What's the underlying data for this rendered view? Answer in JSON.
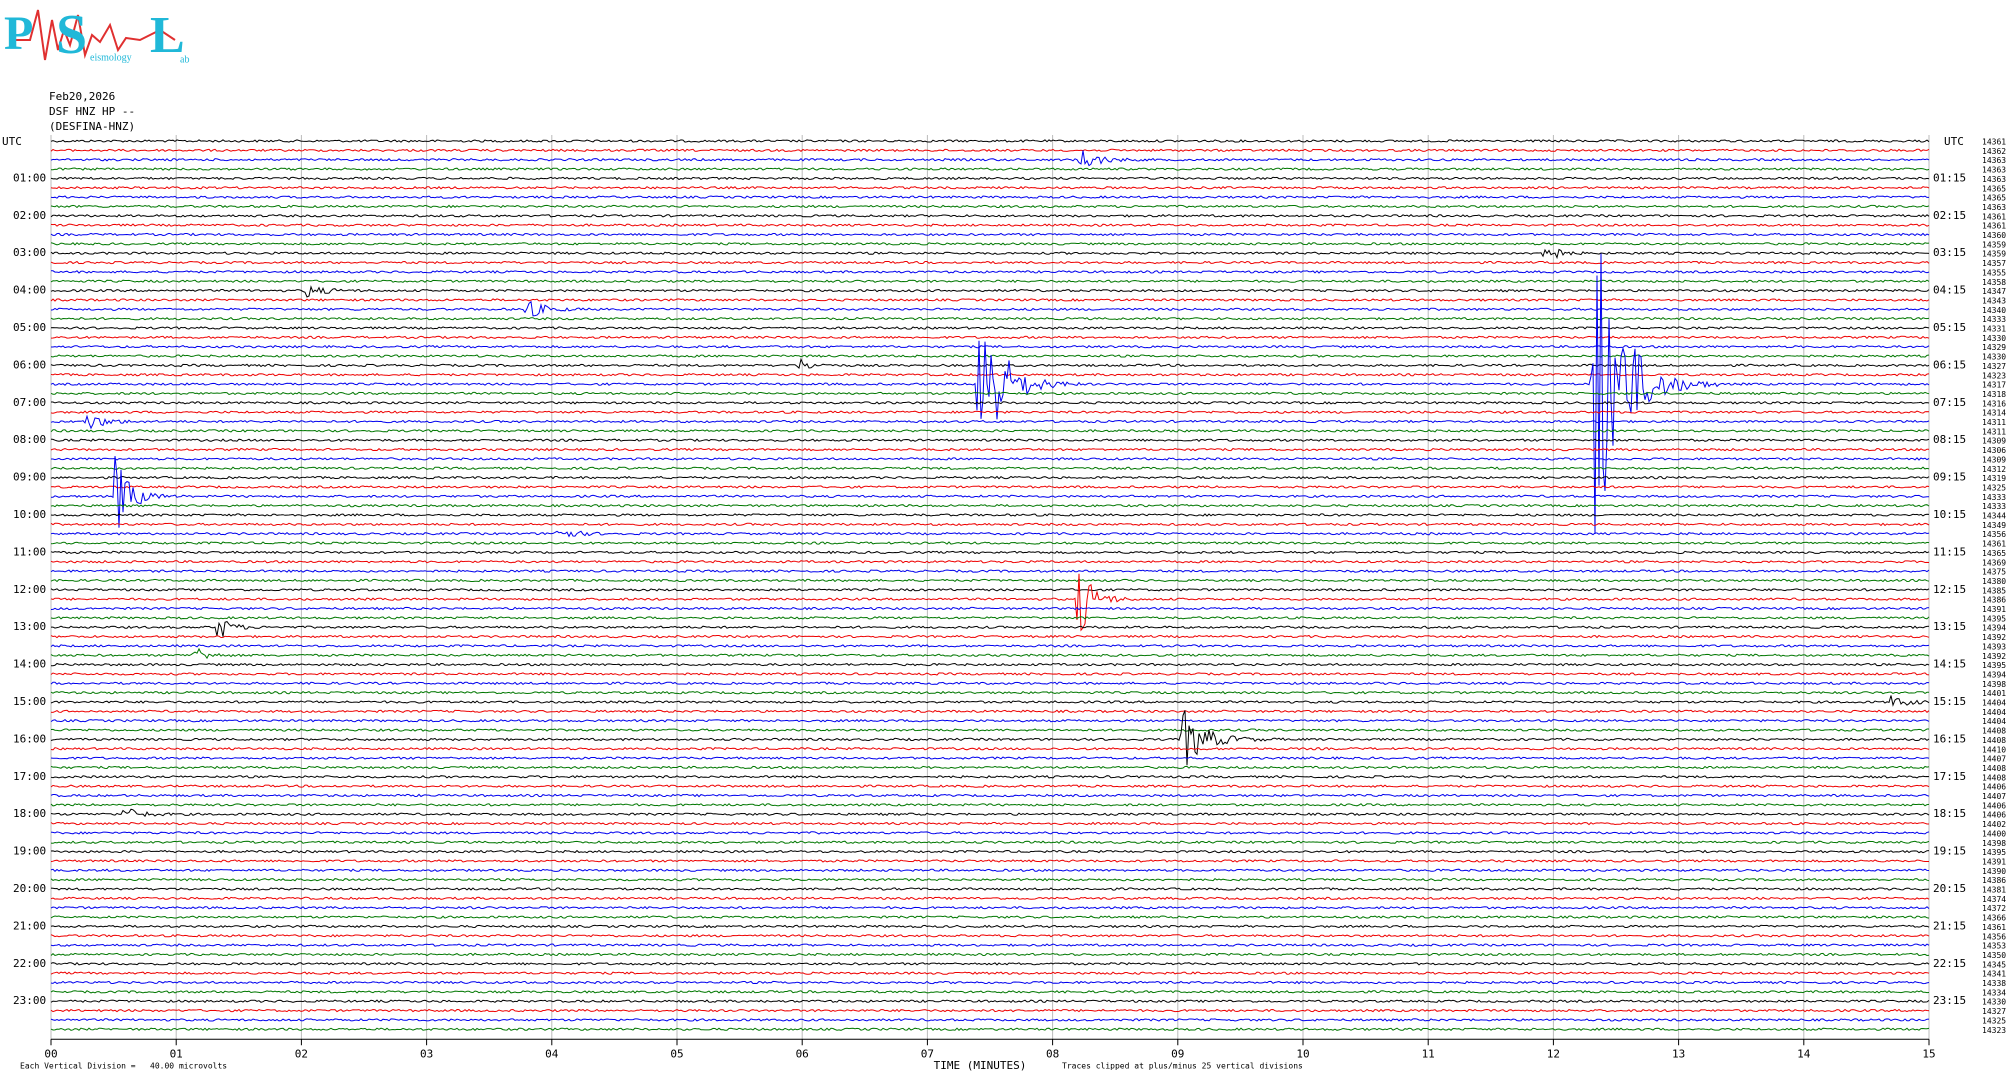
{
  "logo": {
    "letters": [
      "P",
      "S",
      "L"
    ],
    "words": [
      "eismology",
      "ab"
    ]
  },
  "header": {
    "date": "Feb20,2026",
    "station": "DSF HNZ HP --",
    "site": "(DESFINA-HNZ)"
  },
  "left_axis": {
    "title": "UTC",
    "labels": [
      "01:00",
      "02:00",
      "03:00",
      "04:00",
      "05:00",
      "06:00",
      "07:00",
      "08:00",
      "09:00",
      "10:00",
      "11:00",
      "12:00",
      "13:00",
      "14:00",
      "15:00",
      "16:00",
      "17:00",
      "18:00",
      "19:00",
      "20:00",
      "21:00",
      "22:00",
      "23:00"
    ]
  },
  "right_axis": {
    "title": "UTC",
    "labels": [
      "01:15",
      "02:15",
      "03:15",
      "04:15",
      "05:15",
      "06:15",
      "07:15",
      "08:15",
      "09:15",
      "10:15",
      "11:15",
      "12:15",
      "13:15",
      "14:15",
      "15:15",
      "16:15",
      "17:15",
      "18:15",
      "19:15",
      "20:15",
      "21:15",
      "22:15",
      "23:15"
    ]
  },
  "trace_offsets": [
    14361,
    14362,
    14363,
    14363,
    14363,
    14365,
    14365,
    14363,
    14361,
    14361,
    14360,
    14359,
    14359,
    14357,
    14355,
    14358,
    14347,
    14343,
    14340,
    14333,
    14331,
    14330,
    14329,
    14330,
    14327,
    14323,
    14317,
    14318,
    14316,
    14314,
    14311,
    14311,
    14309,
    14306,
    14309,
    14312,
    14319,
    14325,
    14333,
    14333,
    14344,
    14349,
    14356,
    14361,
    14365,
    14369,
    14375,
    14380,
    14385,
    14386,
    14391,
    14395,
    14394,
    14392,
    14393,
    14392,
    14395,
    14394,
    14398,
    14401,
    14404,
    14404,
    14404,
    14408,
    14408,
    14410,
    14407,
    14408,
    14408,
    14406,
    14407,
    14406,
    14406,
    14402,
    14400,
    14398,
    14395,
    14391,
    14390,
    14386,
    14381,
    14374,
    14372,
    14366,
    14361,
    14356,
    14353,
    14350,
    14345,
    14341,
    14338,
    14334,
    14330,
    14327,
    14325,
    14323
  ],
  "x_axis": {
    "title": "TIME (MINUTES)",
    "ticks": [
      "00",
      "01",
      "02",
      "03",
      "04",
      "05",
      "06",
      "07",
      "08",
      "09",
      "10",
      "11",
      "12",
      "13",
      "14",
      "15"
    ]
  },
  "footer": {
    "scale": "Each Vertical Division =   40.00 microvolts",
    "clip": "Traces clipped at plus/minus 25 vertical divisions"
  }
}
